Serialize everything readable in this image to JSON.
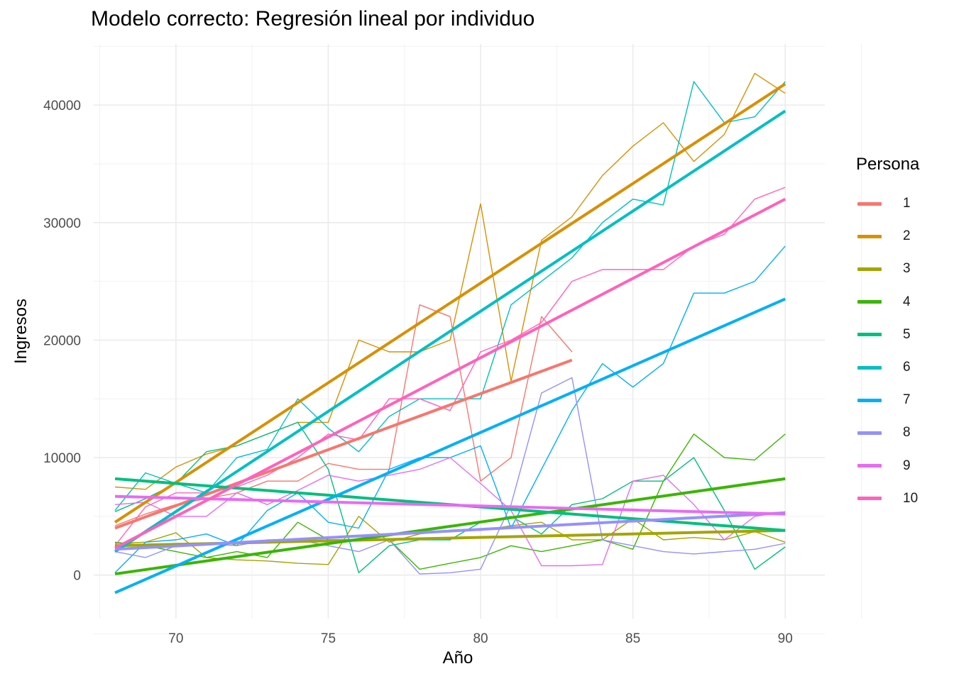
{
  "chart_data": {
    "type": "line",
    "title": "Modelo correcto: Regresión lineal por individuo",
    "xlabel": "Año",
    "ylabel": "Ingresos",
    "xlim": [
      67.3,
      91.3
    ],
    "ylim": [
      -3700,
      45200
    ],
    "x_ticks": [
      70,
      75,
      80,
      85,
      90
    ],
    "y_ticks": [
      0,
      10000,
      20000,
      30000,
      40000
    ],
    "y_tick_labels": [
      "0",
      "10000",
      "20000",
      "30000",
      "40000"
    ],
    "grid": true,
    "legend_title": "Persona",
    "legend_position": "right",
    "series": [
      {
        "name": "1",
        "color": "#F8766D",
        "x": [
          68,
          69,
          70,
          71,
          72,
          73,
          74,
          75,
          76,
          77,
          78,
          79,
          80,
          81,
          82,
          83
        ],
        "y": [
          4200,
          5200,
          6000,
          6500,
          7000,
          8000,
          8000,
          9500,
          9000,
          9000,
          23000,
          22000,
          8000,
          10000,
          22000,
          19000
        ],
        "fit": [
          4000,
          18300
        ]
      },
      {
        "name": "2",
        "color": "#D89000",
        "x": [
          68,
          69,
          70,
          71,
          72,
          73,
          74,
          75,
          76,
          77,
          78,
          79,
          80,
          81,
          82,
          83,
          84,
          85,
          86,
          87,
          88,
          89,
          90
        ],
        "y": [
          7500,
          7300,
          9200,
          10300,
          11000,
          12000,
          13000,
          13000,
          20000,
          19000,
          19000,
          20000,
          31600,
          16500,
          28500,
          30500,
          34000,
          36500,
          38500,
          35200,
          37500,
          42700,
          41000
        ],
        "fit": [
          4500,
          41800
        ]
      },
      {
        "name": "3",
        "color": "#A3A500",
        "x": [
          68,
          69,
          70,
          71,
          72,
          73,
          74,
          75,
          76,
          77,
          78,
          79,
          80,
          81,
          82,
          83,
          84,
          85,
          86,
          87,
          88,
          89,
          90
        ],
        "y": [
          2700,
          2800,
          3600,
          1500,
          1300,
          1200,
          1000,
          900,
          5000,
          2800,
          3500,
          3800,
          3800,
          4200,
          4500,
          3000,
          3000,
          4800,
          3000,
          3200,
          3000,
          3700,
          2800
        ],
        "fit": [
          2500,
          3800
        ]
      },
      {
        "name": "4",
        "color": "#39B600",
        "x": [
          68,
          69,
          70,
          71,
          72,
          73,
          74,
          75,
          76,
          77,
          78,
          79,
          80,
          81,
          82,
          83,
          84,
          85,
          86,
          87,
          88,
          89,
          90
        ],
        "y": [
          2800,
          2500,
          2000,
          1500,
          2000,
          1500,
          4500,
          3000,
          3000,
          3000,
          500,
          1000,
          1500,
          2500,
          2000,
          2500,
          3000,
          2200,
          8000,
          12000,
          10000,
          9800,
          12000
        ],
        "fit": [
          100,
          8200
        ]
      },
      {
        "name": "5",
        "color": "#00BF7D",
        "x": [
          68,
          69,
          70,
          71,
          72,
          73,
          74,
          75,
          76,
          77,
          78,
          79,
          80,
          81,
          82,
          83,
          84,
          85,
          86,
          87,
          88,
          89,
          90
        ],
        "y": [
          5400,
          6500,
          7800,
          10500,
          11000,
          12000,
          13000,
          9000,
          200,
          2500,
          3000,
          3000,
          4500,
          5000,
          3500,
          6000,
          6500,
          8000,
          8000,
          10000,
          5500,
          500,
          2400
        ],
        "fit": [
          8200,
          3800
        ]
      },
      {
        "name": "6",
        "color": "#00BFC4",
        "x": [
          68,
          69,
          70,
          71,
          72,
          73,
          74,
          75,
          76,
          77,
          78,
          79,
          80,
          81,
          82,
          83,
          84,
          85,
          86,
          87,
          88,
          89,
          90
        ],
        "y": [
          5500,
          8700,
          7800,
          7000,
          10000,
          10700,
          15000,
          12500,
          10500,
          13500,
          15000,
          15000,
          15000,
          23000,
          25000,
          27000,
          30000,
          32000,
          31500,
          42000,
          38500,
          39000,
          42000
        ],
        "fit": [
          2000,
          39500
        ]
      },
      {
        "name": "7",
        "color": "#00B0F6",
        "x": [
          68,
          69,
          70,
          71,
          72,
          73,
          74,
          75,
          76,
          77,
          78,
          79,
          80,
          81,
          82,
          83,
          84,
          85,
          86,
          87,
          88,
          89,
          90
        ],
        "y": [
          200,
          2800,
          3000,
          3500,
          2500,
          5500,
          7000,
          4500,
          4000,
          9000,
          10000,
          10000,
          11000,
          4000,
          9000,
          14000,
          18000,
          16000,
          18000,
          24000,
          24000,
          25000,
          28000
        ],
        "fit": [
          -1500,
          23500
        ]
      },
      {
        "name": "8",
        "color": "#9590FF",
        "x": [
          68,
          69,
          70,
          71,
          72,
          73,
          74,
          75,
          76,
          77,
          78,
          79,
          80,
          81,
          82,
          83,
          84,
          85,
          86,
          87,
          88,
          89,
          90
        ],
        "y": [
          2000,
          1500,
          2500,
          2700,
          2500,
          3000,
          3000,
          2500,
          2000,
          3000,
          100,
          200,
          500,
          6000,
          15500,
          16800,
          3000,
          2500,
          2000,
          1800,
          2000,
          2200,
          2700
        ],
        "fit": [
          2200,
          5300
        ]
      },
      {
        "name": "9",
        "color": "#E76BF3",
        "x": [
          68,
          69,
          70,
          71,
          72,
          73,
          74,
          75,
          76,
          77,
          78,
          79,
          80,
          81,
          82,
          83,
          84,
          85,
          86,
          87,
          88,
          89,
          90
        ],
        "y": [
          6000,
          6200,
          5000,
          5000,
          7000,
          6000,
          7200,
          8500,
          8000,
          8500,
          9000,
          10000,
          7800,
          5500,
          800,
          800,
          900,
          8000,
          8500,
          6000,
          3000,
          5000,
          5400
        ],
        "fit": [
          6700,
          5200
        ]
      },
      {
        "name": "10",
        "color": "#FF62BC",
        "x": [
          68,
          69,
          70,
          71,
          72,
          73,
          74,
          75,
          76,
          77,
          78,
          79,
          80,
          81,
          82,
          83,
          84,
          85,
          86,
          87,
          88,
          89,
          90
        ],
        "y": [
          2500,
          5800,
          7000,
          7000,
          7500,
          8500,
          10000,
          12000,
          11500,
          15000,
          15000,
          14000,
          19000,
          20000,
          21500,
          25000,
          26000,
          26000,
          26000,
          28000,
          29000,
          32000,
          33000
        ],
        "fit": [
          2300,
          32000
        ]
      }
    ]
  }
}
